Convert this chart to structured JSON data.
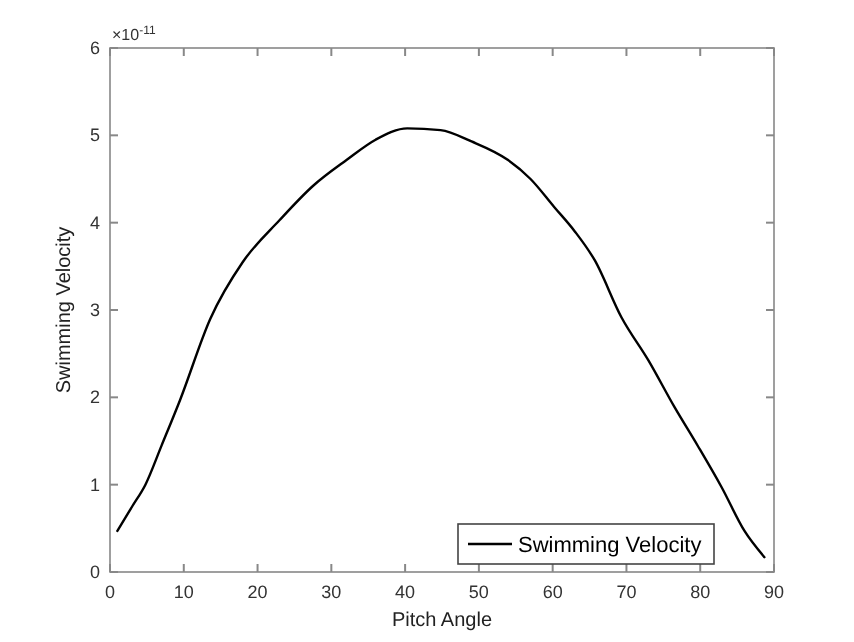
{
  "chart_data": {
    "type": "line",
    "xlabel": "Pitch Angle",
    "ylabel": "Swimming Velocity",
    "x": [
      1,
      3,
      4.8,
      7,
      9.5,
      13.6,
      18,
      23,
      27.5,
      32.1,
      36,
      40.3,
      44.8,
      49,
      53.9,
      57,
      60.2,
      63,
      65.7,
      69.3,
      73,
      76.5,
      79.7,
      82.9,
      86,
      88.7
    ],
    "series": [
      {
        "name": "Swimming Velocity",
        "color": "#000000",
        "values": [
          0.47,
          0.75,
          1.0,
          1.45,
          1.97,
          2.9,
          3.55,
          4.03,
          4.42,
          4.72,
          4.95,
          5.08,
          5.06,
          4.93,
          4.72,
          4.5,
          4.18,
          3.9,
          3.57,
          2.92,
          2.42,
          1.89,
          1.44,
          0.97,
          0.47,
          0.17
        ]
      }
    ],
    "xlim": [
      0,
      90
    ],
    "xticks": [
      0,
      10,
      20,
      30,
      40,
      50,
      60,
      70,
      80,
      90
    ],
    "ylim": [
      0,
      6
    ],
    "yticks": [
      0,
      1,
      2,
      3,
      4,
      5,
      6
    ],
    "annotations": [
      "×10$^{-11}$"
    ],
    "legend": "bottom right",
    "grid": false,
    "marker": "none",
    "line_style": "solid"
  }
}
